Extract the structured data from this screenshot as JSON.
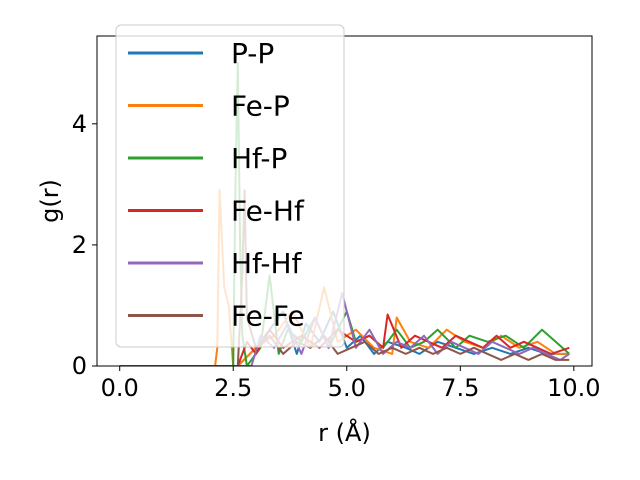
{
  "chart_data": {
    "type": "line",
    "title": "",
    "xlabel": "r (Å)",
    "ylabel": "g(r)",
    "xlim": [
      -0.5,
      10.4
    ],
    "ylim": [
      0,
      5.45
    ],
    "xticks": [
      0.0,
      2.5,
      5.0,
      7.5,
      10.0
    ],
    "xtick_labels": [
      "0.0",
      "2.5",
      "5.0",
      "7.5",
      "10.0"
    ],
    "yticks": [
      0,
      2,
      4
    ],
    "ytick_labels": [
      "0",
      "2",
      "4"
    ],
    "grid": false,
    "legend": "top-left",
    "series": [
      {
        "name": "P-P",
        "color": "#1f77b4",
        "x": [
          0,
          2.0,
          2.4,
          2.6,
          3.0,
          3.3,
          3.6,
          3.9,
          4.1,
          4.4,
          4.7,
          5.0,
          5.3,
          5.6,
          5.9,
          6.3,
          6.6,
          7.0,
          7.4,
          7.8,
          8.2,
          8.6,
          9.0,
          9.4,
          9.9
        ],
        "y": [
          0,
          0,
          0,
          0,
          0.3,
          0.6,
          0.9,
          0.2,
          0.7,
          0.4,
          0.9,
          0.3,
          0.5,
          0.2,
          0.4,
          0.3,
          0.2,
          0.4,
          0.3,
          0.2,
          0.3,
          0.2,
          0.3,
          0.2,
          0.2
        ]
      },
      {
        "name": "Fe-P",
        "color": "#ff7f0e",
        "x": [
          0,
          2.1,
          2.15,
          2.2,
          2.3,
          2.4,
          2.5,
          2.6,
          3.0,
          3.4,
          3.8,
          4.2,
          4.5,
          4.8,
          5.2,
          5.6,
          6.0,
          6.1,
          6.4,
          6.8,
          7.2,
          7.6,
          8.0,
          8.4,
          8.8,
          9.2,
          9.6,
          9.9
        ],
        "y": [
          0,
          0,
          0.3,
          2.9,
          1.3,
          1.0,
          0,
          0,
          0.3,
          0.5,
          0.9,
          0.3,
          1.3,
          0.4,
          0.6,
          0.3,
          0.2,
          0.8,
          0.4,
          0.3,
          0.6,
          0.4,
          0.3,
          0.5,
          0.3,
          0.4,
          0.2,
          0.2
        ]
      },
      {
        "name": "Hf-P",
        "color": "#2ca02c",
        "x": [
          0,
          2.5,
          2.55,
          2.6,
          2.65,
          2.7,
          2.8,
          3.1,
          3.3,
          3.5,
          3.7,
          4.0,
          4.3,
          4.6,
          5.0,
          5.2,
          5.5,
          5.8,
          6.1,
          6.4,
          6.7,
          7.0,
          7.4,
          7.7,
          8.1,
          8.5,
          8.9,
          9.3,
          9.6,
          9.9
        ],
        "y": [
          0,
          0,
          3.0,
          5.0,
          2.0,
          0.5,
          0,
          0.3,
          1.5,
          0.2,
          0.6,
          0.4,
          0.8,
          0.3,
          0.9,
          0.4,
          0.5,
          0.3,
          0.6,
          0.3,
          0.4,
          0.6,
          0.3,
          0.5,
          0.4,
          0.5,
          0.3,
          0.6,
          0.4,
          0.2
        ]
      },
      {
        "name": "Fe-Hf",
        "color": "#d62728",
        "x": [
          0,
          2.6,
          2.8,
          3.0,
          3.3,
          3.6,
          4.0,
          4.4,
          4.8,
          5.2,
          5.5,
          5.8,
          5.9,
          6.2,
          6.5,
          6.8,
          7.1,
          7.4,
          7.7,
          8.0,
          8.3,
          8.6,
          8.9,
          9.2,
          9.5,
          9.9
        ],
        "y": [
          0,
          0,
          0.4,
          0.2,
          0.6,
          0.3,
          0.5,
          0.3,
          0.6,
          0.4,
          0.5,
          0.3,
          0.85,
          0.3,
          0.5,
          0.4,
          0.3,
          0.5,
          0.4,
          0.3,
          0.5,
          0.3,
          0.4,
          0.3,
          0.2,
          0.3
        ]
      },
      {
        "name": "Hf-Hf",
        "color": "#9467bd",
        "x": [
          0,
          2.9,
          3.1,
          3.4,
          3.7,
          4.0,
          4.3,
          4.6,
          4.9,
          5.2,
          5.5,
          5.8,
          6.1,
          6.4,
          6.7,
          7.0,
          7.3,
          7.6,
          7.9,
          8.2,
          8.5,
          8.8,
          9.1,
          9.4,
          9.7,
          9.9
        ],
        "y": [
          0,
          0,
          0.5,
          0.3,
          0.7,
          0.2,
          0.8,
          0.3,
          1.2,
          0.3,
          0.6,
          0.2,
          0.4,
          0.3,
          0.5,
          0.2,
          0.4,
          0.3,
          0.2,
          0.4,
          0.3,
          0.2,
          0.3,
          0.2,
          0.1,
          0.2
        ]
      },
      {
        "name": "Fe-Fe",
        "color": "#8c564b",
        "x": [
          0,
          2.6,
          2.7,
          2.75,
          2.8,
          3.0,
          3.3,
          3.6,
          3.9,
          4.2,
          4.5,
          4.8,
          5.1,
          5.4,
          5.7,
          6.0,
          6.3,
          6.6,
          6.9,
          7.2,
          7.5,
          7.8,
          8.1,
          8.4,
          8.7,
          9.0,
          9.3,
          9.6,
          9.9
        ],
        "y": [
          0,
          0,
          1.5,
          2.9,
          0.8,
          0.3,
          0.5,
          0.2,
          0.4,
          0.3,
          0.5,
          0.2,
          0.3,
          0.4,
          0.2,
          0.3,
          0.2,
          0.3,
          0.2,
          0.3,
          0.2,
          0.3,
          0.2,
          0.1,
          0.2,
          0.1,
          0.2,
          0.1,
          0.1
        ]
      }
    ]
  }
}
